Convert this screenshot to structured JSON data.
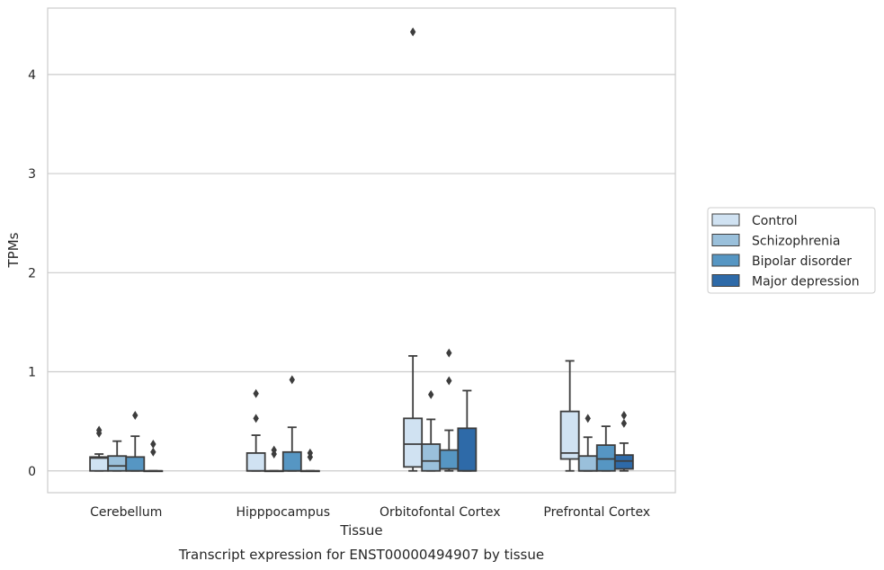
{
  "chart_data": {
    "type": "box",
    "title": "",
    "caption": "Transcript expression for ENST00000494907 by tissue",
    "xlabel": "Tissue",
    "ylabel": "TPMs",
    "ylim": [
      -0.22,
      4.67
    ],
    "yticks": [
      0,
      1,
      2,
      3,
      4
    ],
    "grid": true,
    "legend_position": "right",
    "categories": [
      "Cerebellum",
      "Hipppocampus",
      "Orbitofontal Cortex",
      "Prefrontal Cortex"
    ],
    "series": [
      {
        "name": "Control",
        "color": "#d0e2f2",
        "boxes": [
          {
            "whislo": 0.0,
            "q1": 0.0,
            "med": 0.13,
            "q3": 0.14,
            "whishi": 0.17,
            "fliers": [
              0.38,
              0.41
            ]
          },
          {
            "whislo": 0.0,
            "q1": 0.0,
            "med": 0.0,
            "q3": 0.18,
            "whishi": 0.36,
            "fliers": [
              0.53,
              0.78
            ]
          },
          {
            "whislo": 0.0,
            "q1": 0.04,
            "med": 0.27,
            "q3": 0.53,
            "whishi": 1.16,
            "fliers": [
              4.43
            ]
          },
          {
            "whislo": 0.0,
            "q1": 0.12,
            "med": 0.18,
            "q3": 0.6,
            "whishi": 1.11,
            "fliers": []
          }
        ]
      },
      {
        "name": "Schizophrenia",
        "color": "#9ac0db",
        "boxes": [
          {
            "whislo": 0.0,
            "q1": 0.0,
            "med": 0.05,
            "q3": 0.15,
            "whishi": 0.3,
            "fliers": []
          },
          {
            "whislo": 0.0,
            "q1": 0.0,
            "med": 0.0,
            "q3": 0.0,
            "whishi": 0.0,
            "fliers": [
              0.17,
              0.21
            ]
          },
          {
            "whislo": 0.0,
            "q1": 0.0,
            "med": 0.1,
            "q3": 0.27,
            "whishi": 0.52,
            "fliers": [
              0.77
            ]
          },
          {
            "whislo": 0.0,
            "q1": 0.0,
            "med": 0.0,
            "q3": 0.15,
            "whishi": 0.34,
            "fliers": [
              0.53
            ]
          }
        ]
      },
      {
        "name": "Bipolar disorder",
        "color": "#5696c3",
        "boxes": [
          {
            "whislo": 0.0,
            "q1": 0.0,
            "med": 0.0,
            "q3": 0.14,
            "whishi": 0.35,
            "fliers": [
              0.56
            ]
          },
          {
            "whislo": 0.0,
            "q1": 0.0,
            "med": 0.0,
            "q3": 0.19,
            "whishi": 0.44,
            "fliers": [
              0.92
            ]
          },
          {
            "whislo": 0.0,
            "q1": 0.02,
            "med": 0.02,
            "q3": 0.21,
            "whishi": 0.41,
            "fliers": [
              0.91,
              1.19
            ]
          },
          {
            "whislo": 0.0,
            "q1": 0.0,
            "med": 0.12,
            "q3": 0.26,
            "whishi": 0.45,
            "fliers": []
          }
        ]
      },
      {
        "name": "Major depression",
        "color": "#2e6aa8",
        "boxes": [
          {
            "whislo": 0.0,
            "q1": 0.0,
            "med": 0.0,
            "q3": 0.0,
            "whishi": 0.0,
            "fliers": [
              0.19,
              0.27
            ]
          },
          {
            "whislo": 0.0,
            "q1": 0.0,
            "med": 0.0,
            "q3": 0.0,
            "whishi": 0.0,
            "fliers": [
              0.14,
              0.18
            ]
          },
          {
            "whislo": 0.0,
            "q1": 0.0,
            "med": 0.0,
            "q3": 0.43,
            "whishi": 0.81,
            "fliers": []
          },
          {
            "whislo": 0.0,
            "q1": 0.02,
            "med": 0.1,
            "q3": 0.16,
            "whishi": 0.28,
            "fliers": [
              0.48,
              0.56
            ]
          }
        ]
      }
    ]
  }
}
